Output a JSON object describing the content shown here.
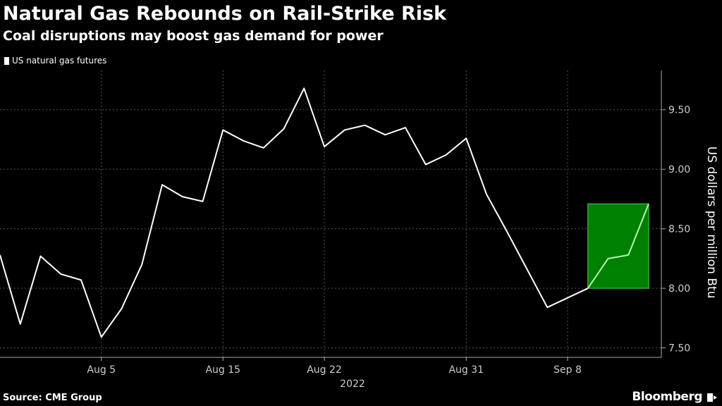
{
  "header": {
    "title": "Natural Gas Rebounds on Rail-Strike Risk",
    "subtitle": "Coal disruptions may boost gas demand for power"
  },
  "footer": {
    "source": "Source: CME Group",
    "brand": "Bloomberg",
    "brand_icon": "bloomberg-terminal-icon"
  },
  "colors": {
    "background": "#000000",
    "line": "#ffffff",
    "highlight_fill": "#008000",
    "highlight_stroke": "#4cd44c",
    "highlight_line": "#b6f5b6",
    "grid": "#555555"
  },
  "chart_data": {
    "type": "line",
    "title": "Natural Gas Rebounds on Rail-Strike Risk",
    "subtitle": "Coal disruptions may boost gas demand for power",
    "xlabel": "",
    "ylabel": "US dollars per million Btu",
    "year_label": "2022",
    "ylim": [
      7.42,
      9.83
    ],
    "yticks": [
      7.5,
      8.0,
      8.5,
      9.0,
      9.5
    ],
    "ytick_labels": [
      "7.50",
      "8.00",
      "8.50",
      "9.00",
      "9.50"
    ],
    "xticks": [
      {
        "date": "2022-08-05",
        "label": "Aug 5"
      },
      {
        "date": "2022-08-15",
        "label": "Aug 15"
      },
      {
        "date": "2022-08-22",
        "label": "Aug 22"
      },
      {
        "date": "2022-08-31",
        "label": "Aug 31"
      },
      {
        "date": "2022-09-08",
        "label": "Sep 8"
      }
    ],
    "grid": true,
    "legend_position": "top-left",
    "series": [
      {
        "name": "US natural gas futures",
        "color": "#ffffff",
        "points": [
          {
            "x": "2022-07-29",
            "y": 8.28
          },
          {
            "x": "2022-08-01",
            "y": 7.7
          },
          {
            "x": "2022-08-02",
            "y": 8.27
          },
          {
            "x": "2022-08-03",
            "y": 8.12
          },
          {
            "x": "2022-08-04",
            "y": 8.07
          },
          {
            "x": "2022-08-05",
            "y": 7.59
          },
          {
            "x": "2022-08-08",
            "y": 7.83
          },
          {
            "x": "2022-08-09",
            "y": 8.2
          },
          {
            "x": "2022-08-10",
            "y": 8.87
          },
          {
            "x": "2022-08-11",
            "y": 8.77
          },
          {
            "x": "2022-08-12",
            "y": 8.73
          },
          {
            "x": "2022-08-15",
            "y": 9.33
          },
          {
            "x": "2022-08-16",
            "y": 9.24
          },
          {
            "x": "2022-08-17",
            "y": 9.18
          },
          {
            "x": "2022-08-18",
            "y": 9.34
          },
          {
            "x": "2022-08-19",
            "y": 9.68
          },
          {
            "x": "2022-08-22",
            "y": 9.19
          },
          {
            "x": "2022-08-23",
            "y": 9.33
          },
          {
            "x": "2022-08-24",
            "y": 9.37
          },
          {
            "x": "2022-08-25",
            "y": 9.29
          },
          {
            "x": "2022-08-26",
            "y": 9.35
          },
          {
            "x": "2022-08-29",
            "y": 9.04
          },
          {
            "x": "2022-08-30",
            "y": 9.12
          },
          {
            "x": "2022-08-31",
            "y": 9.26
          },
          {
            "x": "2022-09-01",
            "y": 8.79
          },
          {
            "x": "2022-09-02",
            "y": 8.48
          },
          {
            "x": "2022-09-06",
            "y": 8.16
          },
          {
            "x": "2022-09-07",
            "y": 7.84
          },
          {
            "x": "2022-09-08",
            "y": 7.92
          },
          {
            "x": "2022-09-09",
            "y": 8.0
          },
          {
            "x": "2022-09-12",
            "y": 8.25
          },
          {
            "x": "2022-09-13",
            "y": 8.28
          },
          {
            "x": "2022-09-14",
            "y": 8.71
          }
        ]
      }
    ],
    "highlight": {
      "x_start": "2022-09-09",
      "x_end": "2022-09-14",
      "y_low": 8.0,
      "y_high": 8.71
    }
  }
}
